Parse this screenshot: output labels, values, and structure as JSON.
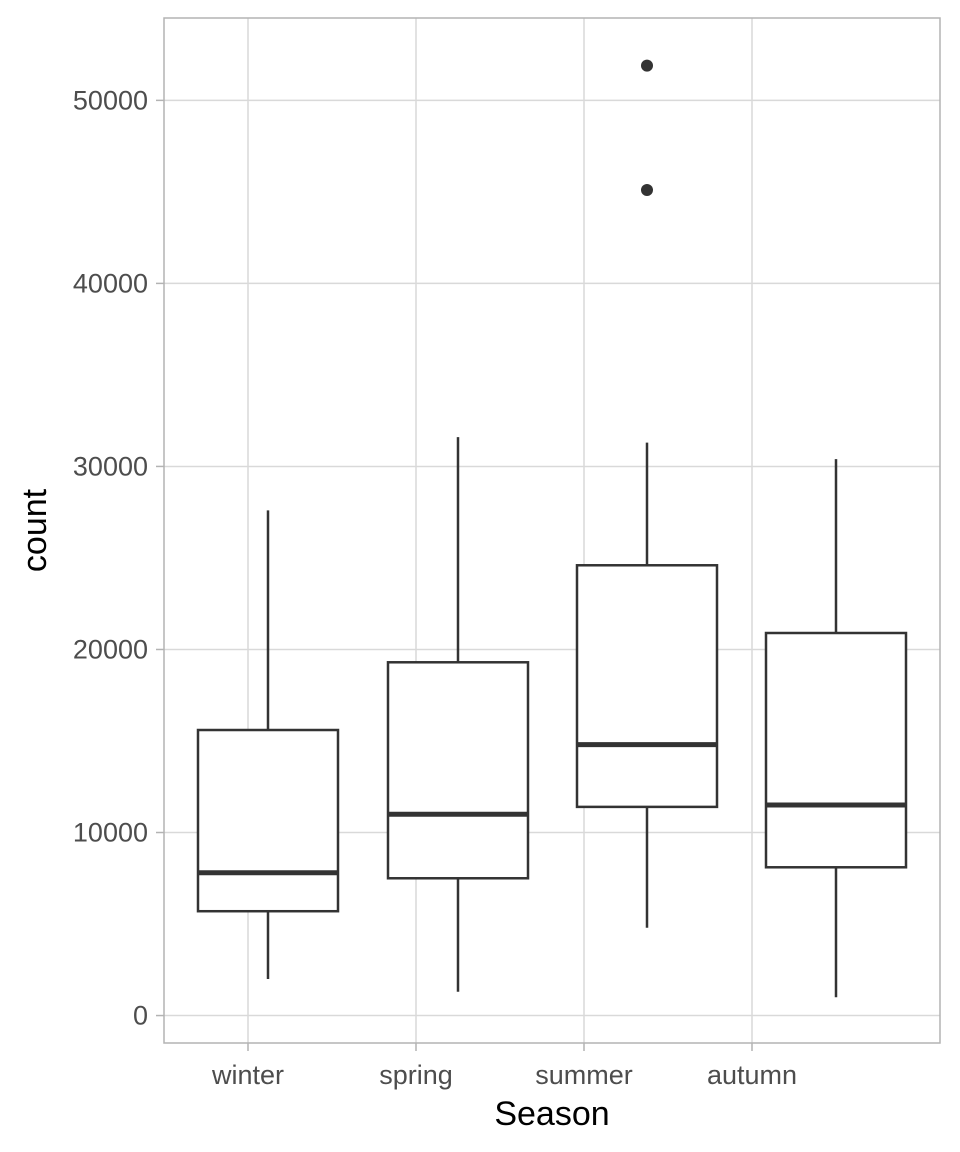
{
  "chart_data": {
    "type": "boxplot",
    "title": "",
    "xlabel": "Season",
    "ylabel": "count",
    "categories": [
      "winter",
      "spring",
      "summer",
      "autumn"
    ],
    "ylim": [
      -1500,
      54500
    ],
    "y_ticks": [
      {
        "value": 0,
        "label": "0"
      },
      {
        "value": 10000,
        "label": "10000"
      },
      {
        "value": 20000,
        "label": "20000"
      },
      {
        "value": 30000,
        "label": "30000"
      },
      {
        "value": 40000,
        "label": "40000"
      },
      {
        "value": 50000,
        "label": "50000"
      }
    ],
    "boxes": [
      {
        "category": "winter",
        "whisker_low": 2000,
        "q1": 5700,
        "median": 7800,
        "q3": 15600,
        "whisker_high": 27600,
        "outliers": []
      },
      {
        "category": "spring",
        "whisker_low": 1300,
        "q1": 7500,
        "median": 11000,
        "q3": 19300,
        "whisker_high": 31600,
        "outliers": []
      },
      {
        "category": "summer",
        "whisker_low": 4800,
        "q1": 11400,
        "median": 14800,
        "q3": 24600,
        "whisker_high": 31300,
        "outliers": [
          45100,
          51900
        ]
      },
      {
        "category": "autumn",
        "whisker_low": 1000,
        "q1": 8100,
        "median": 11500,
        "q3": 20900,
        "whisker_high": 30400,
        "outliers": []
      }
    ],
    "grid": true,
    "legend": "none",
    "colors": {
      "box_stroke": "#333333",
      "grid": "#d9d9d9",
      "panel_border": "#b3b3b3",
      "tick_text": "#4d4d4d",
      "title_text": "#000000",
      "background": "#ffffff"
    }
  }
}
